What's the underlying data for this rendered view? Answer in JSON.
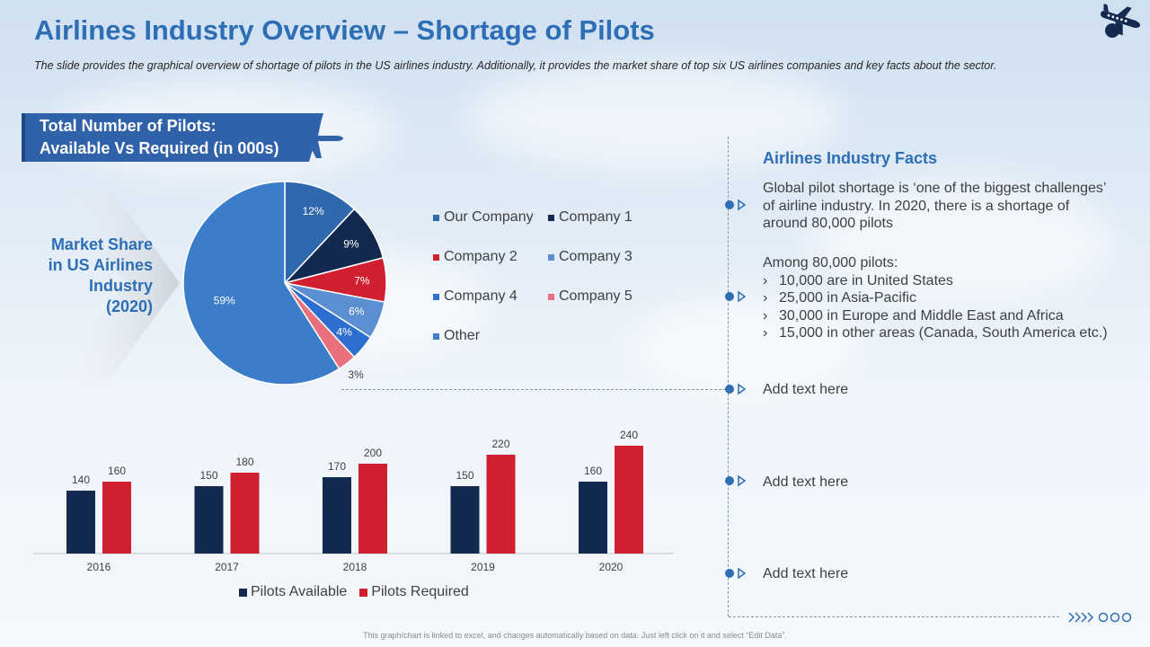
{
  "header": {
    "title": "Airlines Industry Overview – Shortage of Pilots",
    "subtitle": "The slide provides the graphical overview of shortage of pilots in the US airlines industry. Additionally, it provides the market share of top six US airlines companies and key facts about the sector."
  },
  "banner": {
    "line1": "Total Number of Pilots:",
    "line2": "Available Vs Required (in 000s)"
  },
  "market_share_label": {
    "line1": "Market Share",
    "line2": "in US Airlines",
    "line3": "Industry",
    "line4": "(2020)"
  },
  "colors": {
    "accent": "#2e6eb5",
    "navy": "#13294f",
    "red": "#d01f2f",
    "banner": "#2f62a8"
  },
  "chart_data": [
    {
      "type": "pie",
      "title": "Market Share in US Airlines Industry (2020)",
      "labels": [
        "Our Company",
        "Company 1",
        "Company 2",
        "Company 3",
        "Company 4",
        "Company 5",
        "Other"
      ],
      "values": [
        12,
        9,
        7,
        6,
        4,
        3,
        59
      ],
      "value_labels": [
        "12%",
        "9%",
        "7%",
        "6%",
        "4%",
        "3%",
        "59%"
      ],
      "colors": [
        "#2f68ad",
        "#13294f",
        "#d01f2f",
        "#5b8fd1",
        "#2c6fcf",
        "#e8707c",
        "#3b7dc8"
      ],
      "legend_position": "right"
    },
    {
      "type": "bar",
      "title": "Total Number of Pilots: Available Vs Required (in 000s)",
      "categories": [
        "2016",
        "2017",
        "2018",
        "2019",
        "2020"
      ],
      "series": [
        {
          "name": "Pilots Available",
          "values": [
            140,
            150,
            170,
            150,
            160
          ],
          "color": "#13294f"
        },
        {
          "name": "Pilots Required",
          "values": [
            160,
            180,
            200,
            220,
            240
          ],
          "color": "#d01f2f"
        }
      ],
      "ylim": [
        0,
        300
      ],
      "grid": false,
      "legend_position": "bottom"
    }
  ],
  "facts": {
    "title": "Airlines Industry Facts",
    "fact1": {
      "line1": "Global pilot shortage is ‘one of the biggest challenges’",
      "line2": "of airline industry. In 2020, there is a shortage of",
      "line3": "around 80,000 pilots"
    },
    "fact2": {
      "intro": "Among 80,000 pilots:",
      "chevron": "›",
      "items": [
        "10,000 are in United States",
        "25,000 in Asia-Pacific",
        "30,000 in Europe and Middle East and Africa",
        "15,000 in other areas (Canada, South America etc.)"
      ]
    },
    "placeholder1": "Add text here",
    "placeholder2": "Add text here",
    "placeholder3": "Add text here"
  },
  "footer": {
    "note": "This graph/chart is linked to excel, and changes automatically based on data. Just left click on it and select “Edit Data”."
  }
}
